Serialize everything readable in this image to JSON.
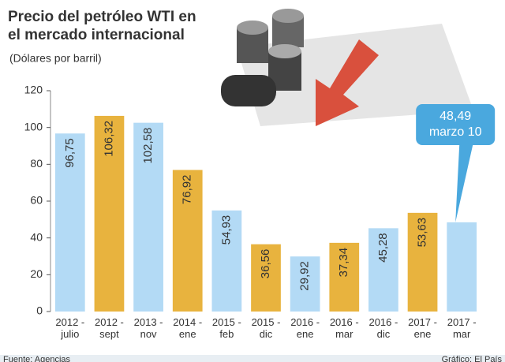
{
  "chart_data": {
    "type": "bar",
    "title": "Precio del petróleo WTI en el mercado internacional",
    "subtitle": "(Dólares por barril)",
    "categories": [
      "2012 -julio",
      "2012 -sept",
      "2013 -nov",
      "2014 -ene",
      "2015 -feb",
      "2015 -dic",
      "2016 -ene",
      "2016 -mar",
      "2016 -dic",
      "2017 -ene",
      "2017 -mar"
    ],
    "values": [
      96.75,
      106.32,
      102.58,
      76.92,
      54.93,
      36.56,
      29.92,
      37.34,
      45.28,
      53.63,
      48.49
    ],
    "value_labels": [
      "96,75",
      "106,32",
      "102,58",
      "76,92",
      "54,93",
      "36,56",
      "29,92",
      "37,34",
      "45,28",
      "53,63",
      null
    ],
    "colors": [
      "#b3daf5",
      "#e8b33e",
      "#b3daf5",
      "#e8b33e",
      "#b3daf5",
      "#e8b33e",
      "#b3daf5",
      "#e8b33e",
      "#b3daf5",
      "#e8b33e",
      "#b3daf5"
    ],
    "annotation": [
      "48,49",
      "marzo 10"
    ],
    "ylim": [
      0,
      120
    ],
    "yticks": [
      0,
      20,
      40,
      60,
      80,
      100,
      120
    ],
    "grid": false,
    "source": "Fuente: Agencias",
    "credit": "Gráfico: El País"
  }
}
